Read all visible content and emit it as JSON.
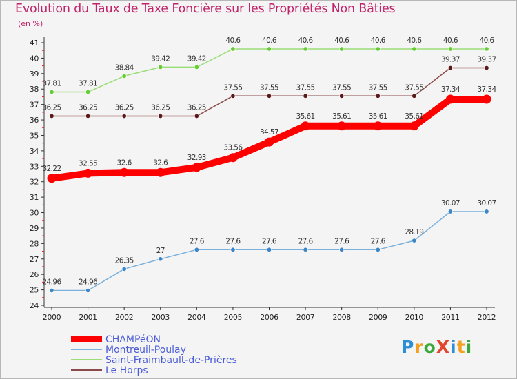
{
  "title": "Evolution du Taux de Taxe Foncière sur les Propriétés Non Bâties",
  "unit_label": "(en %)",
  "brand": {
    "text": "ProXiti",
    "letters": [
      {
        "ch": "P",
        "color": "#2b8fd8"
      },
      {
        "ch": "r",
        "color": "#f2a01e"
      },
      {
        "ch": "o",
        "color": "#3aa93a"
      },
      {
        "ch": "X",
        "color": "#e2462f"
      },
      {
        "ch": "i",
        "color": "#2b8fd8"
      },
      {
        "ch": "t",
        "color": "#f2a01e"
      },
      {
        "ch": "i",
        "color": "#3aa93a"
      }
    ]
  },
  "chart_data": {
    "type": "line",
    "title": "Evolution du Taux de Taxe Foncière sur les Propriétés Non Bâties",
    "xlabel": "",
    "ylabel": "(en %)",
    "x": [
      "2000",
      "2001",
      "2002",
      "2003",
      "2004",
      "2005",
      "2006",
      "2007",
      "2008",
      "2009",
      "2010",
      "2011",
      "2012"
    ],
    "ylim": [
      24,
      41
    ],
    "yticks": [
      24,
      25,
      26,
      27,
      28,
      29,
      30,
      31,
      32,
      33,
      34,
      35,
      36,
      37,
      38,
      39,
      40,
      41
    ],
    "grid": false,
    "legend_position": "bottom-left",
    "series": [
      {
        "name": "CHAMPéON",
        "color": "#ff0000",
        "width": 10,
        "marker_color": "#ff0000",
        "values": [
          32.22,
          32.55,
          32.6,
          32.6,
          32.93,
          33.56,
          34.57,
          35.61,
          35.61,
          35.61,
          35.61,
          37.34,
          37.34
        ],
        "labels": [
          "32.22",
          "32.55",
          "32.6",
          "32.6",
          "32.93",
          "33.56",
          "34.57",
          "35.61",
          "35.61",
          "35.61",
          "35.61",
          "37.34",
          "37.34"
        ]
      },
      {
        "name": "Montreuil-Poulay",
        "color": "#7ab0dc",
        "width": 1.5,
        "marker_color": "#3d86c6",
        "values": [
          24.96,
          24.96,
          26.35,
          27,
          27.6,
          27.6,
          27.6,
          27.6,
          27.6,
          27.6,
          28.19,
          30.07,
          30.07
        ],
        "labels": [
          "24.96",
          "24.96",
          "26.35",
          "27",
          "27.6",
          "27.6",
          "27.6",
          "27.6",
          "27.6",
          "27.6",
          "28.19",
          "30.07",
          "30.07"
        ]
      },
      {
        "name": "Saint-Fraimbault-de-Prières",
        "color": "#99dd77",
        "width": 1.5,
        "marker_color": "#66cc33",
        "values": [
          37.81,
          37.81,
          38.84,
          39.42,
          39.42,
          40.6,
          40.6,
          40.6,
          40.6,
          40.6,
          40.6,
          40.6,
          40.6
        ],
        "labels": [
          "37.81",
          "37.81",
          "38.84",
          "39.42",
          "39.42",
          "40.6",
          "40.6",
          "40.6",
          "40.6",
          "40.6",
          "40.6",
          "40.6",
          "40.6"
        ]
      },
      {
        "name": "Le Horps",
        "color": "#8a4a4a",
        "width": 1.5,
        "marker_color": "#5a1a1a",
        "values": [
          36.25,
          36.25,
          36.25,
          36.25,
          36.25,
          37.55,
          37.55,
          37.55,
          37.55,
          37.55,
          37.55,
          39.37,
          39.37
        ],
        "labels": [
          "36.25",
          "36.25",
          "36.25",
          "36.25",
          "36.25",
          "37.55",
          "37.55",
          "37.55",
          "37.55",
          "37.55",
          "37.55",
          "39.37",
          "39.37"
        ]
      }
    ]
  }
}
